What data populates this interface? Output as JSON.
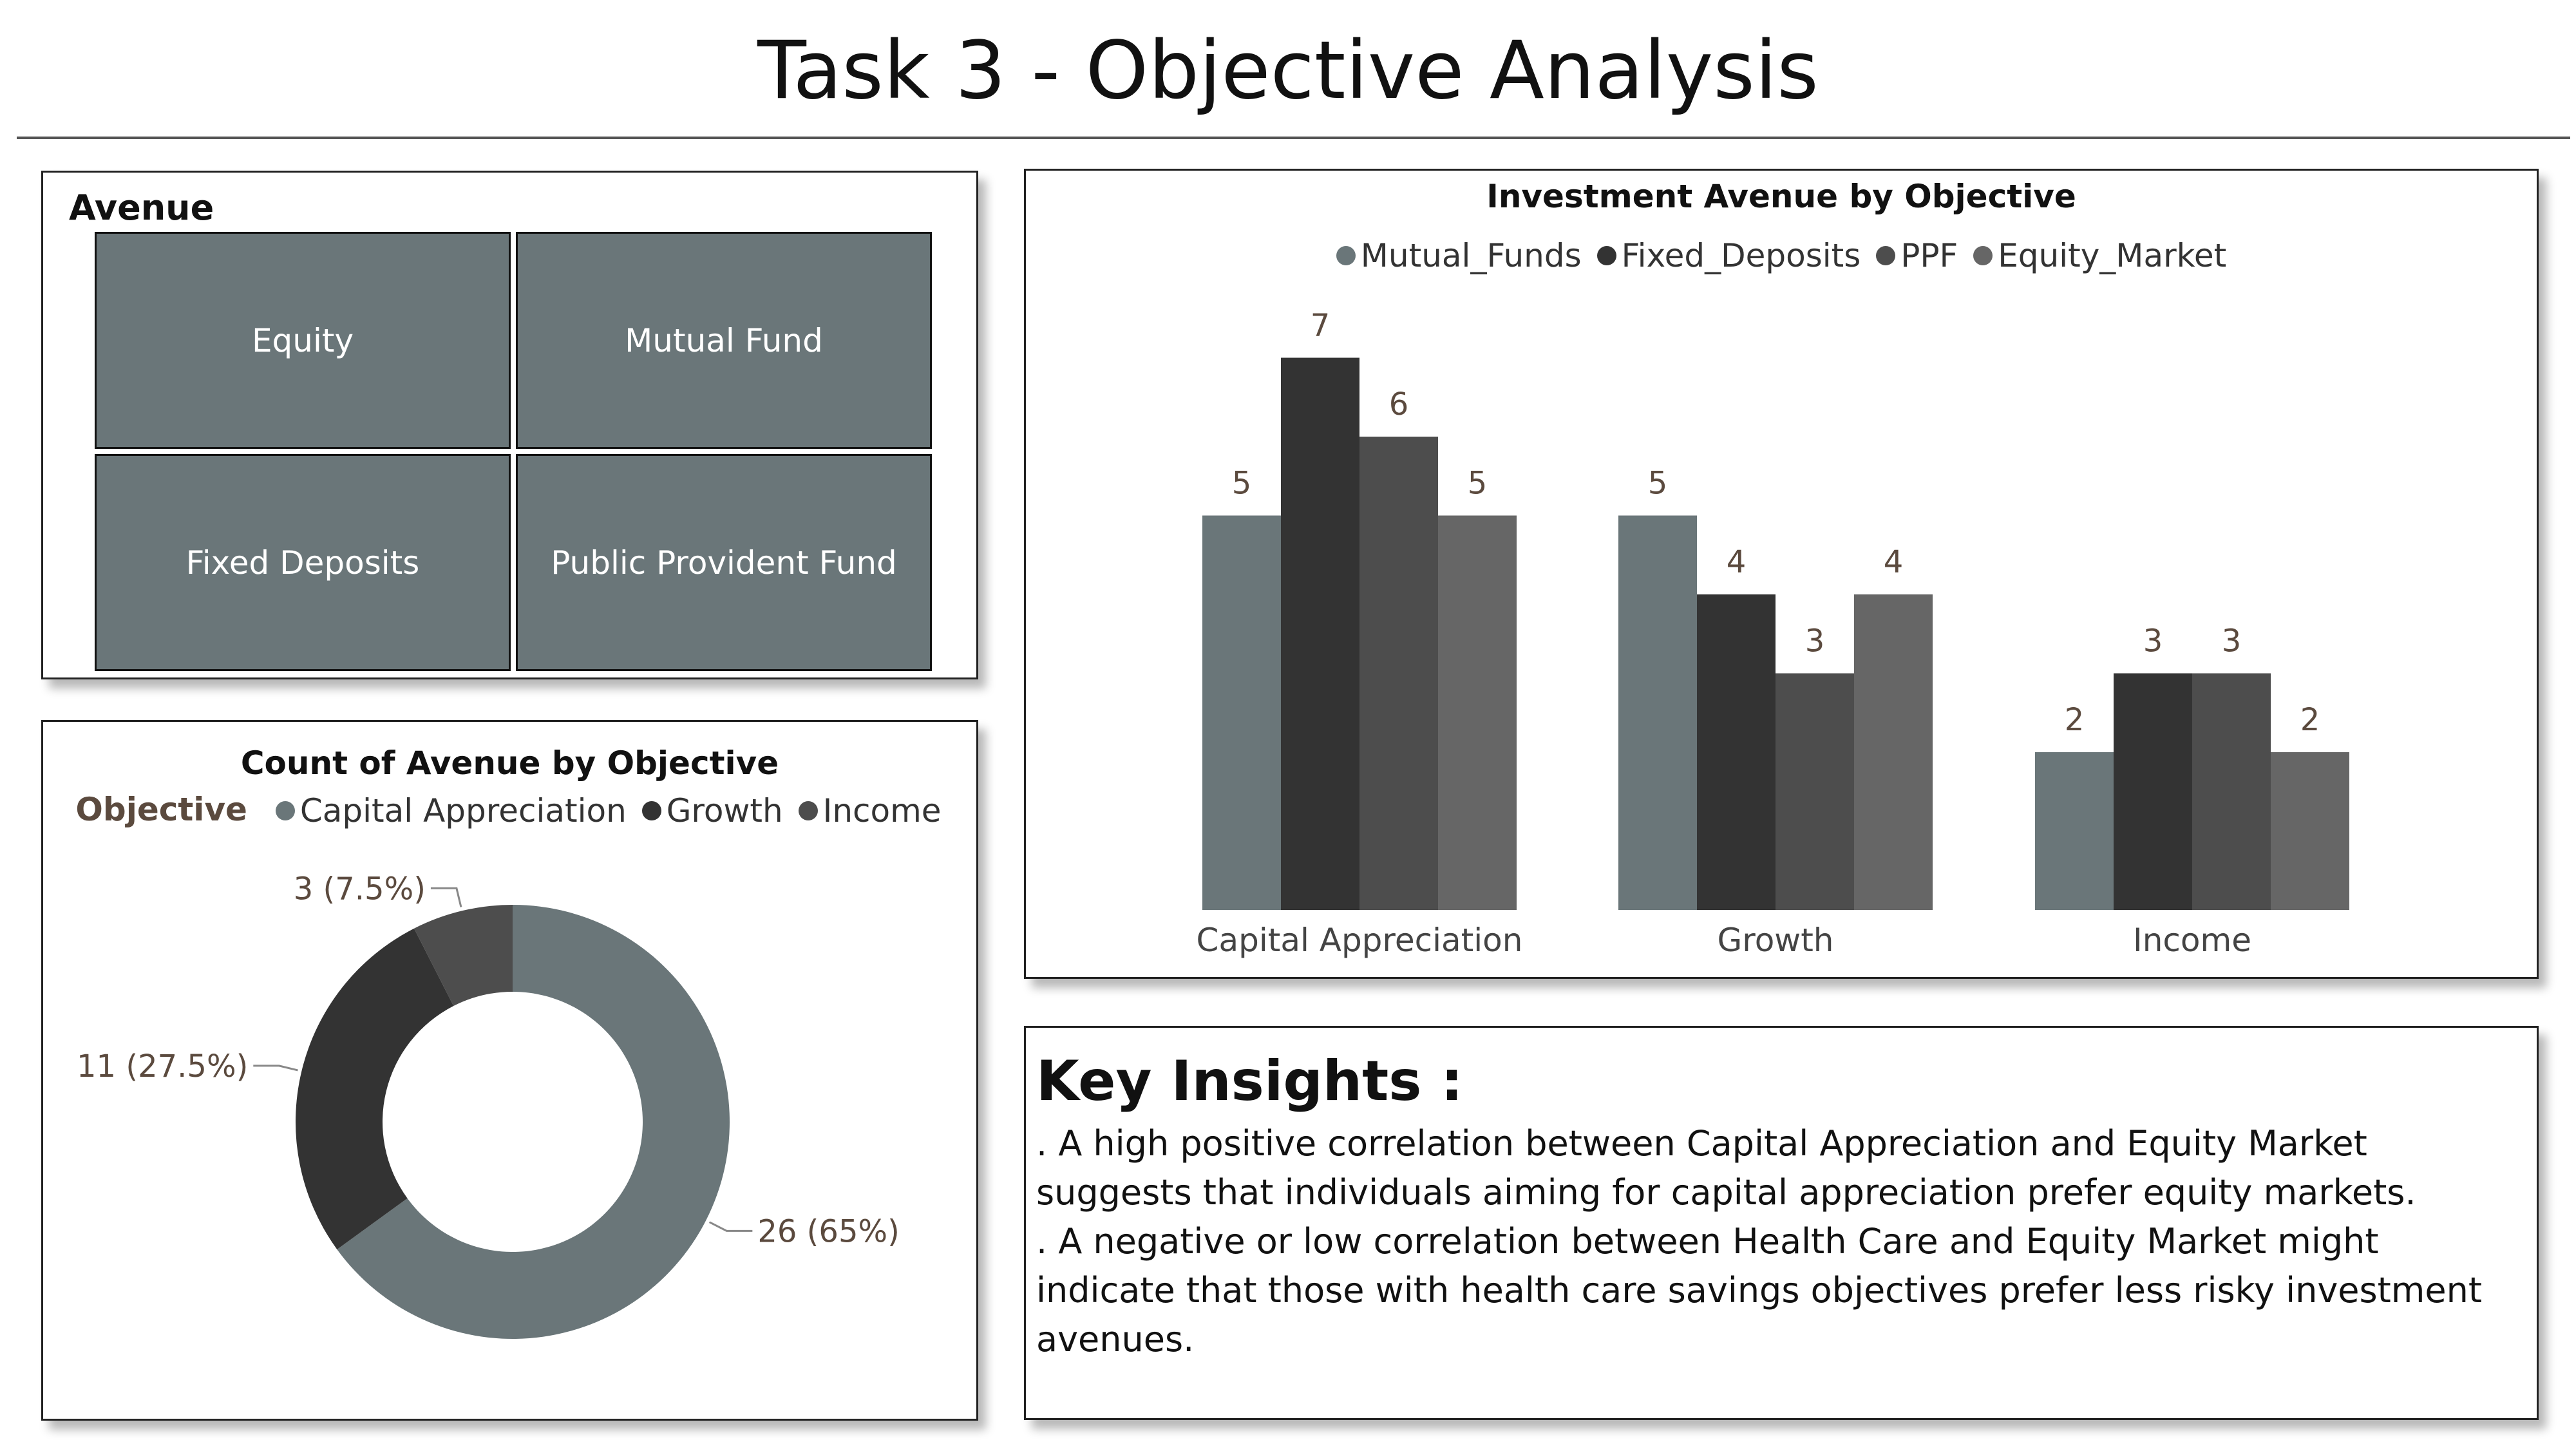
{
  "page": {
    "title": "Task 3 - Objective Analysis"
  },
  "avenue_slicer": {
    "title": "Avenue",
    "tiles": [
      "Equity",
      "Mutual Fund",
      "Fixed Deposits",
      "Public Provident Fund"
    ],
    "tile_color": "#6a7679"
  },
  "donut": {
    "title": "Count of Avenue by Objective",
    "legend_heading": "Objective",
    "legend": [
      {
        "name": "Capital Appreciation",
        "color": "#6a7679"
      },
      {
        "name": "Growth",
        "color": "#333333"
      },
      {
        "name": "Income",
        "color": "#4d4d4d"
      }
    ]
  },
  "bar": {
    "title": "Investment Avenue by Objective",
    "legend": [
      {
        "name": "Mutual_Funds",
        "color": "#6a7679"
      },
      {
        "name": "Fixed_Deposits",
        "color": "#333333"
      },
      {
        "name": "PPF",
        "color": "#4d4d4d"
      },
      {
        "name": "Equity_Market",
        "color": "#666666"
      }
    ]
  },
  "insights": {
    "title": "Key Insights :",
    "points": [
      ". A high positive correlation between Capital Appreciation and Equity Market suggests that individuals aiming for capital appreciation prefer equity markets.",
      ". A negative or low correlation between Health Care and Equity Market might indicate that those with health care savings objectives prefer less risky investment avenues."
    ]
  },
  "chart_data": [
    {
      "type": "pie",
      "title": "Count of Avenue by Objective",
      "categories": [
        "Capital Appreciation",
        "Growth",
        "Income"
      ],
      "values": [
        26,
        11,
        3
      ],
      "labels": [
        "26 (65%)",
        "11 (27.5%)",
        "3 (7.5%)"
      ],
      "colors": [
        "#6a7679",
        "#333333",
        "#4d4d4d"
      ],
      "legend_position": "top"
    },
    {
      "type": "bar",
      "title": "Investment Avenue by Objective",
      "categories": [
        "Capital Appreciation",
        "Growth",
        "Income"
      ],
      "series": [
        {
          "name": "Mutual_Funds",
          "values": [
            5,
            5,
            2
          ],
          "color": "#6a7679"
        },
        {
          "name": "Fixed_Deposits",
          "values": [
            7,
            4,
            3
          ],
          "color": "#333333"
        },
        {
          "name": "PPF",
          "values": [
            6,
            3,
            3
          ],
          "color": "#4d4d4d"
        },
        {
          "name": "Equity_Market",
          "values": [
            5,
            4,
            2
          ],
          "color": "#666666"
        }
      ],
      "ylim": [
        0,
        7
      ],
      "grid": false,
      "legend_position": "top"
    }
  ]
}
